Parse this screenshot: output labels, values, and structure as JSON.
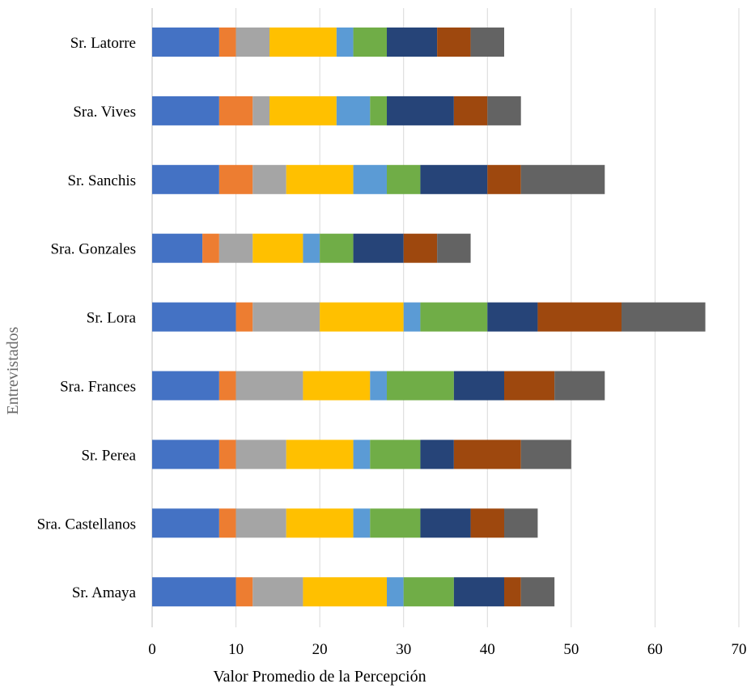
{
  "chart_data": {
    "type": "bar",
    "orientation": "horizontal",
    "stacked": true,
    "title": "",
    "xlabel": "Valor Promedio de la Percepción",
    "ylabel": "Entrevistados",
    "xlim": [
      0,
      70
    ],
    "xticks": [
      0,
      10,
      20,
      30,
      40,
      50,
      60,
      70
    ],
    "grid": true,
    "legend": "none",
    "categories": [
      "Sr. Latorre",
      "Sra. Vives",
      "Sr. Sanchis",
      "Sra. Gonzales",
      "Sr. Lora",
      "Sra. Frances",
      "Sr. Perea",
      "Sra. Castellanos",
      "Sr. Amaya"
    ],
    "series": [
      {
        "color": "#4472C4",
        "values": [
          8,
          8,
          8,
          6,
          10,
          8,
          8,
          8,
          10
        ]
      },
      {
        "color": "#ED7D31",
        "values": [
          2,
          4,
          4,
          2,
          2,
          2,
          2,
          2,
          2
        ]
      },
      {
        "color": "#A5A5A5",
        "values": [
          4,
          2,
          4,
          4,
          8,
          8,
          6,
          6,
          6
        ]
      },
      {
        "color": "#FFC000",
        "values": [
          8,
          8,
          8,
          6,
          10,
          8,
          8,
          8,
          10
        ]
      },
      {
        "color": "#5B9BD5",
        "values": [
          2,
          4,
          4,
          2,
          2,
          2,
          2,
          2,
          2
        ]
      },
      {
        "color": "#70AD47",
        "values": [
          4,
          2,
          4,
          4,
          8,
          8,
          6,
          6,
          6
        ]
      },
      {
        "color": "#264478",
        "values": [
          6,
          8,
          8,
          6,
          6,
          6,
          4,
          6,
          6
        ]
      },
      {
        "color": "#9E480E",
        "values": [
          4,
          4,
          4,
          4,
          10,
          6,
          8,
          4,
          2
        ]
      },
      {
        "color": "#636363",
        "values": [
          4,
          4,
          10,
          4,
          10,
          6,
          6,
          4,
          4
        ]
      }
    ]
  }
}
